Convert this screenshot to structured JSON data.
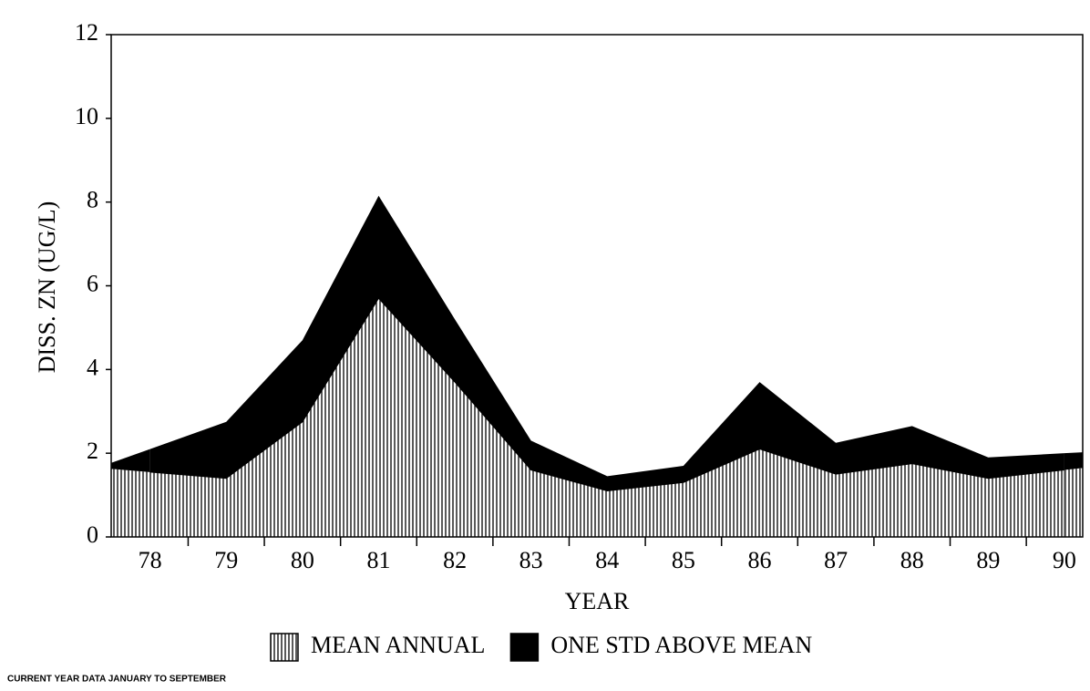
{
  "chart_data": {
    "type": "area",
    "categories": [
      "78",
      "79",
      "80",
      "81",
      "82",
      "83",
      "84",
      "85",
      "86",
      "87",
      "88",
      "89",
      "90"
    ],
    "series": [
      {
        "name": "MEAN ANNUAL",
        "color": "#000000",
        "pattern": "vertical-hatch",
        "values": [
          1.55,
          1.4,
          2.75,
          5.7,
          3.7,
          1.6,
          1.1,
          1.3,
          2.1,
          1.5,
          1.75,
          1.4,
          1.6
        ]
      },
      {
        "name": "ONE STD ABOVE MEAN",
        "color": "#000000",
        "values": [
          0.55,
          1.35,
          1.95,
          2.45,
          1.5,
          0.7,
          0.35,
          0.4,
          1.6,
          0.75,
          0.9,
          0.5,
          0.4
        ]
      }
    ],
    "stacked": true,
    "ylabel": "DISS. ZN (UG/L)",
    "xlabel": "YEAR",
    "ylim": [
      0,
      12
    ],
    "yticks": [
      0,
      2,
      4,
      6,
      8,
      10,
      12
    ],
    "footnote": "CURRENT YEAR DATA JANUARY TO SEPTEMBER"
  }
}
